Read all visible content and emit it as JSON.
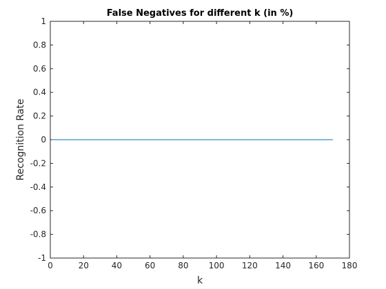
{
  "chart_data": {
    "type": "line",
    "title": "False Negatives for different k (in %)",
    "xlabel": "k",
    "ylabel": "Recognition Rate",
    "xlim": [
      0,
      180
    ],
    "ylim": [
      -1,
      1
    ],
    "xticks": [
      0,
      20,
      40,
      60,
      80,
      100,
      120,
      140,
      160,
      180
    ],
    "yticks": [
      -1,
      -0.8,
      -0.6,
      -0.4,
      -0.2,
      0,
      0.2,
      0.4,
      0.6,
      0.8,
      1
    ],
    "xtick_labels": [
      "0",
      "20",
      "40",
      "60",
      "80",
      "100",
      "120",
      "140",
      "160",
      "180"
    ],
    "ytick_labels": [
      "-1",
      "-0.8",
      "-0.6",
      "-0.4",
      "-0.2",
      "0",
      "0.2",
      "0.4",
      "0.6",
      "0.8",
      "1"
    ],
    "grid": false,
    "series": [
      {
        "x": [
          1,
          170
        ],
        "y": [
          0,
          0
        ],
        "color": "#0072bd"
      }
    ]
  }
}
